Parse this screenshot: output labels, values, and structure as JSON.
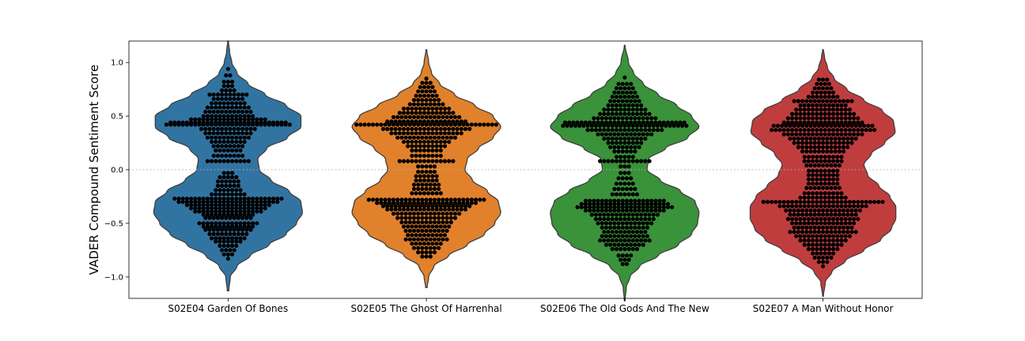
{
  "chart_data": {
    "type": "violin",
    "ylabel": "VADER Compound Sentiment Score",
    "xlabel": "",
    "ylim": [
      -1.2,
      1.2
    ],
    "yticks": [
      1.0,
      0.5,
      0.0,
      -0.5,
      -1.0
    ],
    "ytick_labels": [
      "1.0",
      "0.5",
      "0.0",
      "−0.5",
      "−1.0"
    ],
    "reference_line": {
      "y": 0.0,
      "style": "dotted"
    },
    "overlay": "swarm",
    "point_color": "#000000",
    "categories": [
      "S02E04 Garden Of Bones",
      "S02E05 The Ghost Of Harrenhal",
      "S02E06 The Old Gods And The New",
      "S02E07 A Man Without Honor"
    ],
    "series": [
      {
        "category": "S02E04 Garden Of Bones",
        "color": "#3274a1",
        "range": [
          -1.13,
          1.2
        ],
        "density": [
          [
            -1.13,
            0.01
          ],
          [
            -1.0,
            0.03
          ],
          [
            -0.9,
            0.12
          ],
          [
            -0.8,
            0.3
          ],
          [
            -0.7,
            0.55
          ],
          [
            -0.6,
            0.78
          ],
          [
            -0.5,
            0.92
          ],
          [
            -0.4,
            1.0
          ],
          [
            -0.3,
            0.98
          ],
          [
            -0.2,
            0.82
          ],
          [
            -0.1,
            0.58
          ],
          [
            0.0,
            0.42
          ],
          [
            0.1,
            0.4
          ],
          [
            0.2,
            0.52
          ],
          [
            0.3,
            0.8
          ],
          [
            0.4,
            0.98
          ],
          [
            0.5,
            0.98
          ],
          [
            0.6,
            0.78
          ],
          [
            0.7,
            0.5
          ],
          [
            0.8,
            0.27
          ],
          [
            0.9,
            0.12
          ],
          [
            1.0,
            0.05
          ],
          [
            1.1,
            0.02
          ],
          [
            1.2,
            0.005
          ]
        ],
        "points": [
          {
            "y": 0.94,
            "n": 1
          },
          {
            "y": 0.88,
            "n": 2
          },
          {
            "y": 0.82,
            "n": 3
          },
          {
            "y": 0.78,
            "n": 3
          },
          {
            "y": 0.74,
            "n": 4
          },
          {
            "y": 0.7,
            "n": 10
          },
          {
            "y": 0.66,
            "n": 8
          },
          {
            "y": 0.62,
            "n": 9
          },
          {
            "y": 0.58,
            "n": 11
          },
          {
            "y": 0.54,
            "n": 12
          },
          {
            "y": 0.5,
            "n": 13
          },
          {
            "y": 0.47,
            "n": 19
          },
          {
            "y": 0.44,
            "n": 29
          },
          {
            "y": 0.42,
            "n": 31
          },
          {
            "y": 0.38,
            "n": 14
          },
          {
            "y": 0.34,
            "n": 12
          },
          {
            "y": 0.3,
            "n": 11
          },
          {
            "y": 0.26,
            "n": 9
          },
          {
            "y": 0.22,
            "n": 8
          },
          {
            "y": 0.18,
            "n": 7
          },
          {
            "y": 0.13,
            "n": 8
          },
          {
            "y": 0.08,
            "n": 11
          },
          {
            "y": -0.03,
            "n": 3
          },
          {
            "y": -0.07,
            "n": 5
          },
          {
            "y": -0.11,
            "n": 6
          },
          {
            "y": -0.15,
            "n": 6
          },
          {
            "y": -0.19,
            "n": 7
          },
          {
            "y": -0.23,
            "n": 9
          },
          {
            "y": -0.27,
            "n": 27
          },
          {
            "y": -0.3,
            "n": 25
          },
          {
            "y": -0.33,
            "n": 21
          },
          {
            "y": -0.36,
            "n": 19
          },
          {
            "y": -0.39,
            "n": 17
          },
          {
            "y": -0.42,
            "n": 13
          },
          {
            "y": -0.45,
            "n": 12
          },
          {
            "y": -0.5,
            "n": 15
          },
          {
            "y": -0.53,
            "n": 13
          },
          {
            "y": -0.56,
            "n": 12
          },
          {
            "y": -0.6,
            "n": 10
          },
          {
            "y": -0.64,
            "n": 9
          },
          {
            "y": -0.67,
            "n": 7
          },
          {
            "y": -0.71,
            "n": 5
          },
          {
            "y": -0.75,
            "n": 4
          },
          {
            "y": -0.79,
            "n": 3
          },
          {
            "y": -0.83,
            "n": 1
          }
        ]
      },
      {
        "category": "S02E05 The Ghost Of Harrenhal",
        "color": "#e1812c",
        "range": [
          -1.1,
          1.12
        ],
        "density": [
          [
            -1.1,
            0.01
          ],
          [
            -1.0,
            0.03
          ],
          [
            -0.9,
            0.1
          ],
          [
            -0.8,
            0.3
          ],
          [
            -0.7,
            0.55
          ],
          [
            -0.6,
            0.78
          ],
          [
            -0.5,
            0.92
          ],
          [
            -0.4,
            1.0
          ],
          [
            -0.3,
            0.97
          ],
          [
            -0.2,
            0.82
          ],
          [
            -0.1,
            0.62
          ],
          [
            0.0,
            0.52
          ],
          [
            0.1,
            0.55
          ],
          [
            0.2,
            0.7
          ],
          [
            0.3,
            0.9
          ],
          [
            0.4,
            1.0
          ],
          [
            0.5,
            0.9
          ],
          [
            0.6,
            0.65
          ],
          [
            0.7,
            0.38
          ],
          [
            0.8,
            0.18
          ],
          [
            0.9,
            0.07
          ],
          [
            1.0,
            0.03
          ],
          [
            1.12,
            0.005
          ]
        ],
        "points": [
          {
            "y": 0.85,
            "n": 1
          },
          {
            "y": 0.81,
            "n": 3
          },
          {
            "y": 0.77,
            "n": 4
          },
          {
            "y": 0.73,
            "n": 5
          },
          {
            "y": 0.69,
            "n": 6
          },
          {
            "y": 0.65,
            "n": 7
          },
          {
            "y": 0.61,
            "n": 9
          },
          {
            "y": 0.57,
            "n": 12
          },
          {
            "y": 0.53,
            "n": 14
          },
          {
            "y": 0.49,
            "n": 17
          },
          {
            "y": 0.45,
            "n": 20
          },
          {
            "y": 0.42,
            "n": 35
          },
          {
            "y": 0.38,
            "n": 22
          },
          {
            "y": 0.34,
            "n": 18
          },
          {
            "y": 0.3,
            "n": 15
          },
          {
            "y": 0.26,
            "n": 12
          },
          {
            "y": 0.22,
            "n": 10
          },
          {
            "y": 0.18,
            "n": 8
          },
          {
            "y": 0.13,
            "n": 8
          },
          {
            "y": 0.08,
            "n": 14
          },
          {
            "y": 0.03,
            "n": 5
          },
          {
            "y": -0.02,
            "n": 5
          },
          {
            "y": -0.06,
            "n": 6
          },
          {
            "y": -0.1,
            "n": 6
          },
          {
            "y": -0.14,
            "n": 7
          },
          {
            "y": -0.18,
            "n": 7
          },
          {
            "y": -0.22,
            "n": 8
          },
          {
            "y": -0.28,
            "n": 29
          },
          {
            "y": -0.31,
            "n": 25
          },
          {
            "y": -0.34,
            "n": 22
          },
          {
            "y": -0.37,
            "n": 20
          },
          {
            "y": -0.41,
            "n": 17
          },
          {
            "y": -0.45,
            "n": 15
          },
          {
            "y": -0.49,
            "n": 13
          },
          {
            "y": -0.53,
            "n": 12
          },
          {
            "y": -0.57,
            "n": 11
          },
          {
            "y": -0.61,
            "n": 10
          },
          {
            "y": -0.65,
            "n": 11
          },
          {
            "y": -0.69,
            "n": 8
          },
          {
            "y": -0.73,
            "n": 7
          },
          {
            "y": -0.77,
            "n": 5
          },
          {
            "y": -0.81,
            "n": 3
          }
        ]
      },
      {
        "category": "S02E06 The Old Gods And The New",
        "color": "#3a923a",
        "range": [
          -1.22,
          1.16
        ],
        "density": [
          [
            -1.22,
            0.005
          ],
          [
            -1.1,
            0.02
          ],
          [
            -1.0,
            0.07
          ],
          [
            -0.9,
            0.2
          ],
          [
            -0.8,
            0.45
          ],
          [
            -0.7,
            0.72
          ],
          [
            -0.6,
            0.9
          ],
          [
            -0.5,
            0.98
          ],
          [
            -0.4,
            1.0
          ],
          [
            -0.3,
            0.95
          ],
          [
            -0.2,
            0.75
          ],
          [
            -0.1,
            0.48
          ],
          [
            0.0,
            0.3
          ],
          [
            0.1,
            0.32
          ],
          [
            0.2,
            0.55
          ],
          [
            0.3,
            0.85
          ],
          [
            0.4,
            1.0
          ],
          [
            0.5,
            0.9
          ],
          [
            0.6,
            0.7
          ],
          [
            0.7,
            0.45
          ],
          [
            0.8,
            0.25
          ],
          [
            0.9,
            0.12
          ],
          [
            1.0,
            0.05
          ],
          [
            1.16,
            0.005
          ]
        ],
        "points": [
          {
            "y": 0.86,
            "n": 1
          },
          {
            "y": 0.8,
            "n": 4
          },
          {
            "y": 0.76,
            "n": 5
          },
          {
            "y": 0.72,
            "n": 6
          },
          {
            "y": 0.68,
            "n": 7
          },
          {
            "y": 0.64,
            "n": 8
          },
          {
            "y": 0.6,
            "n": 9
          },
          {
            "y": 0.56,
            "n": 11
          },
          {
            "y": 0.52,
            "n": 13
          },
          {
            "y": 0.48,
            "n": 16
          },
          {
            "y": 0.44,
            "n": 30
          },
          {
            "y": 0.41,
            "n": 31
          },
          {
            "y": 0.37,
            "n": 19
          },
          {
            "y": 0.33,
            "n": 14
          },
          {
            "y": 0.29,
            "n": 11
          },
          {
            "y": 0.25,
            "n": 9
          },
          {
            "y": 0.21,
            "n": 8
          },
          {
            "y": 0.17,
            "n": 6
          },
          {
            "y": 0.12,
            "n": 5
          },
          {
            "y": 0.08,
            "n": 13
          },
          {
            "y": 0.03,
            "n": 3
          },
          {
            "y": -0.03,
            "n": 3
          },
          {
            "y": -0.08,
            "n": 4
          },
          {
            "y": -0.13,
            "n": 5
          },
          {
            "y": -0.18,
            "n": 6
          },
          {
            "y": -0.23,
            "n": 7
          },
          {
            "y": -0.29,
            "n": 20
          },
          {
            "y": -0.32,
            "n": 22
          },
          {
            "y": -0.35,
            "n": 24
          },
          {
            "y": -0.38,
            "n": 20
          },
          {
            "y": -0.42,
            "n": 17
          },
          {
            "y": -0.46,
            "n": 15
          },
          {
            "y": -0.5,
            "n": 14
          },
          {
            "y": -0.54,
            "n": 12
          },
          {
            "y": -0.58,
            "n": 11
          },
          {
            "y": -0.62,
            "n": 12
          },
          {
            "y": -0.66,
            "n": 13
          },
          {
            "y": -0.7,
            "n": 10
          },
          {
            "y": -0.74,
            "n": 7
          },
          {
            "y": -0.8,
            "n": 4
          },
          {
            "y": -0.84,
            "n": 3
          },
          {
            "y": -0.88,
            "n": 2
          }
        ]
      },
      {
        "category": "S02E07 A Man Without Honor",
        "color": "#c03d3e",
        "range": [
          -1.18,
          1.12
        ],
        "density": [
          [
            -1.18,
            0.005
          ],
          [
            -1.05,
            0.03
          ],
          [
            -0.95,
            0.12
          ],
          [
            -0.85,
            0.3
          ],
          [
            -0.75,
            0.55
          ],
          [
            -0.65,
            0.78
          ],
          [
            -0.55,
            0.92
          ],
          [
            -0.45,
            0.98
          ],
          [
            -0.35,
            0.98
          ],
          [
            -0.25,
            0.9
          ],
          [
            -0.15,
            0.75
          ],
          [
            -0.05,
            0.6
          ],
          [
            0.05,
            0.55
          ],
          [
            0.15,
            0.65
          ],
          [
            0.25,
            0.83
          ],
          [
            0.35,
            0.97
          ],
          [
            0.45,
            0.95
          ],
          [
            0.55,
            0.8
          ],
          [
            0.65,
            0.55
          ],
          [
            0.75,
            0.32
          ],
          [
            0.85,
            0.15
          ],
          [
            0.95,
            0.06
          ],
          [
            1.05,
            0.02
          ],
          [
            1.12,
            0.005
          ]
        ],
        "points": [
          {
            "y": 0.84,
            "n": 3
          },
          {
            "y": 0.8,
            "n": 4
          },
          {
            "y": 0.76,
            "n": 5
          },
          {
            "y": 0.72,
            "n": 6
          },
          {
            "y": 0.68,
            "n": 8
          },
          {
            "y": 0.64,
            "n": 15
          },
          {
            "y": 0.6,
            "n": 12
          },
          {
            "y": 0.56,
            "n": 14
          },
          {
            "y": 0.52,
            "n": 16
          },
          {
            "y": 0.48,
            "n": 18
          },
          {
            "y": 0.44,
            "n": 20
          },
          {
            "y": 0.41,
            "n": 25
          },
          {
            "y": 0.37,
            "n": 26
          },
          {
            "y": 0.33,
            "n": 20
          },
          {
            "y": 0.29,
            "n": 17
          },
          {
            "y": 0.25,
            "n": 15
          },
          {
            "y": 0.21,
            "n": 13
          },
          {
            "y": 0.17,
            "n": 11
          },
          {
            "y": 0.12,
            "n": 10
          },
          {
            "y": 0.08,
            "n": 10
          },
          {
            "y": 0.04,
            "n": 9
          },
          {
            "y": -0.01,
            "n": 8
          },
          {
            "y": -0.05,
            "n": 8
          },
          {
            "y": -0.09,
            "n": 8
          },
          {
            "y": -0.13,
            "n": 8
          },
          {
            "y": -0.17,
            "n": 9
          },
          {
            "y": -0.22,
            "n": 10
          },
          {
            "y": -0.26,
            "n": 12
          },
          {
            "y": -0.3,
            "n": 30
          },
          {
            "y": -0.34,
            "n": 22
          },
          {
            "y": -0.38,
            "n": 19
          },
          {
            "y": -0.42,
            "n": 17
          },
          {
            "y": -0.46,
            "n": 18
          },
          {
            "y": -0.5,
            "n": 16
          },
          {
            "y": -0.54,
            "n": 15
          },
          {
            "y": -0.58,
            "n": 17
          },
          {
            "y": -0.62,
            "n": 14
          },
          {
            "y": -0.66,
            "n": 12
          },
          {
            "y": -0.7,
            "n": 10
          },
          {
            "y": -0.74,
            "n": 8
          },
          {
            "y": -0.78,
            "n": 6
          },
          {
            "y": -0.82,
            "n": 5
          },
          {
            "y": -0.86,
            "n": 3
          },
          {
            "y": -0.9,
            "n": 1
          }
        ]
      }
    ]
  }
}
